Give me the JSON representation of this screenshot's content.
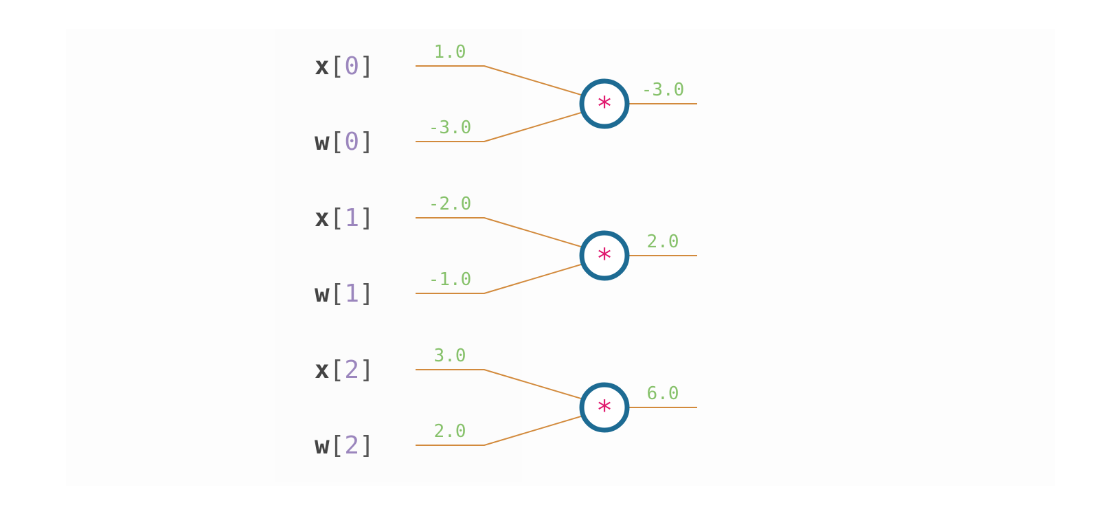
{
  "colors": {
    "wire": "#d28a3c",
    "node_ring": "#1d6b93",
    "operator": "#e0196e",
    "value": "#86c16a",
    "variable_name": "#444444",
    "index": "#9b86bd"
  },
  "gates": [
    {
      "operator": "*",
      "inputs": [
        {
          "name": "x",
          "index": "0",
          "value": "1.0"
        },
        {
          "name": "w",
          "index": "0",
          "value": "-3.0"
        }
      ],
      "output": "-3.0"
    },
    {
      "operator": "*",
      "inputs": [
        {
          "name": "x",
          "index": "1",
          "value": "-2.0"
        },
        {
          "name": "w",
          "index": "1",
          "value": "-1.0"
        }
      ],
      "output": "2.0"
    },
    {
      "operator": "*",
      "inputs": [
        {
          "name": "x",
          "index": "2",
          "value": "3.0"
        },
        {
          "name": "w",
          "index": "2",
          "value": "2.0"
        }
      ],
      "output": "6.0"
    }
  ]
}
